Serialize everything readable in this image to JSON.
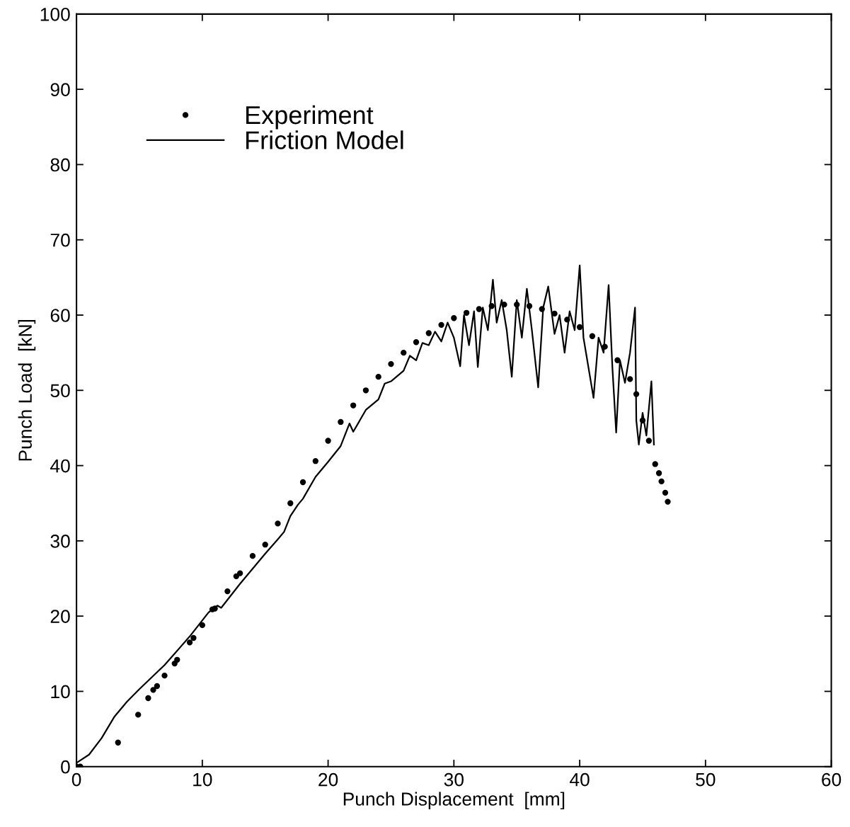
{
  "chart_data": {
    "type": "line",
    "xlabel": "Punch Displacement  [mm]",
    "ylabel": "Punch Load  [kN]",
    "xlim": [
      0,
      60
    ],
    "xticks": [
      0,
      10,
      20,
      30,
      40,
      50,
      60
    ],
    "ylim": [
      0,
      100
    ],
    "yticks": [
      0,
      10,
      20,
      30,
      40,
      50,
      60,
      70,
      80,
      90,
      100
    ],
    "grid": false,
    "legend": "top left",
    "series": [
      {
        "name": "Experiment",
        "type": "scatter",
        "marker": "circle",
        "color": "#000000",
        "x": [
          0,
          0.3,
          3.3,
          4.9,
          5.7,
          6.1,
          6.4,
          7,
          7.8,
          8,
          9,
          9.3,
          10,
          10.8,
          11,
          12,
          12.7,
          13,
          14,
          15,
          16,
          17,
          18,
          19,
          20,
          21,
          22,
          23,
          24,
          25,
          26,
          27,
          28,
          29,
          30,
          31,
          32,
          33,
          34,
          35,
          36,
          37,
          38,
          39,
          40,
          41,
          42,
          43,
          44,
          44.5,
          45,
          45.5,
          46,
          46.3,
          46.5,
          46.8,
          47
        ],
        "values": [
          0,
          0,
          3.2,
          6.9,
          9.1,
          10.2,
          10.7,
          12.1,
          13.7,
          14.2,
          16.5,
          17.1,
          18.8,
          20.9,
          21.0,
          23.3,
          25.3,
          25.7,
          28.0,
          29.5,
          32.3,
          35.0,
          37.8,
          40.6,
          43.3,
          45.8,
          48.0,
          50.0,
          51.8,
          53.5,
          55.0,
          56.4,
          57.6,
          58.7,
          59.6,
          60.3,
          60.8,
          61.2,
          61.4,
          61.4,
          61.2,
          60.8,
          60.2,
          59.4,
          58.4,
          57.2,
          55.8,
          54.0,
          51.5,
          49.5,
          46,
          43.3,
          40.2,
          39,
          37.9,
          36.4,
          35.2
        ]
      },
      {
        "name": "Friction Model",
        "type": "line",
        "line_style": "solid",
        "color": "#000000",
        "x": [
          0,
          1,
          2,
          3,
          4,
          5,
          7,
          9,
          10.5,
          11.2,
          11.5,
          13,
          15,
          16,
          16.5,
          17,
          17.6,
          18,
          19,
          20,
          21,
          21.7,
          22,
          23,
          24,
          24.5,
          25,
          26,
          26.5,
          27,
          27.5,
          28,
          28.5,
          29,
          29.5,
          30,
          30.5,
          30.8,
          31.2,
          31.6,
          31.9,
          32.3,
          32.7,
          33.1,
          33.4,
          33.8,
          34.2,
          34.6,
          35,
          35.4,
          35.8,
          36.2,
          36.7,
          37.1,
          37.5,
          38,
          38.4,
          38.8,
          39.2,
          39.6,
          40.0,
          40.3,
          40.7,
          41.1,
          41.5,
          41.9,
          42.3,
          42.6,
          42.9,
          43.2,
          43.6,
          44.0,
          44.4,
          44.5,
          44.7,
          45.0,
          45.3,
          45.7,
          45.9
        ],
        "values": [
          0.5,
          1.6,
          3.8,
          6.6,
          8.6,
          10.3,
          13.5,
          17.3,
          20.5,
          21.4,
          21.1,
          24.3,
          28.3,
          30.2,
          31.2,
          33.3,
          34.8,
          35.6,
          38.5,
          40.5,
          42.6,
          45.6,
          44.5,
          47.4,
          48.8,
          50.9,
          51.2,
          52.6,
          54.6,
          54.0,
          56.3,
          56.0,
          57.8,
          56.5,
          59,
          57,
          53.2,
          60,
          56,
          60.5,
          53.1,
          61,
          58,
          64.7,
          59,
          62,
          58,
          51.8,
          62,
          57,
          63.5,
          58,
          50.4,
          61,
          63.8,
          57.5,
          60,
          55,
          60.5,
          58,
          66.6,
          57,
          53,
          49.0,
          57,
          55,
          64,
          53,
          44.4,
          54,
          51,
          55,
          61,
          46,
          42.8,
          47,
          44,
          51.2,
          42.8
        ]
      }
    ]
  }
}
